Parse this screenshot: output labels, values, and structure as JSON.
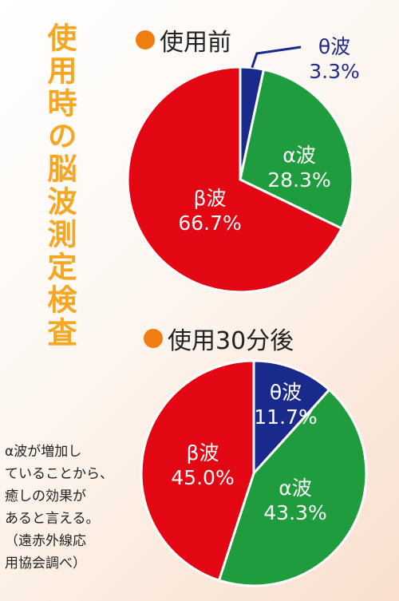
{
  "title": "使用時の脳波測定検査",
  "chart_data": [
    {
      "type": "pie",
      "title": "使用前",
      "slices": [
        {
          "name": "θ波",
          "pct_label": "3.3%",
          "value": 3.3,
          "color": "#1a2a8c"
        },
        {
          "name": "α波",
          "pct_label": "28.3%",
          "value": 28.3,
          "color": "#1f9d3e"
        },
        {
          "name": "β波",
          "pct_label": "66.7%",
          "value": 66.7,
          "color": "#e30613"
        }
      ]
    },
    {
      "type": "pie",
      "title": "使用30分後",
      "slices": [
        {
          "name": "θ波",
          "pct_label": "11.7%",
          "value": 11.7,
          "color": "#1a2a8c"
        },
        {
          "name": "α波",
          "pct_label": "43.3%",
          "value": 43.3,
          "color": "#1f9d3e"
        },
        {
          "name": "β波",
          "pct_label": "45.0%",
          "value": 45.0,
          "color": "#e30613"
        }
      ]
    }
  ],
  "note_lines": [
    "α波が増加し",
    "ていることから、",
    "癒しの効果が",
    "あると言える。",
    "（遠赤外線応",
    "用協会調べ）"
  ],
  "accent_color": "#f5a623",
  "bullet_color": "#ef7d10"
}
